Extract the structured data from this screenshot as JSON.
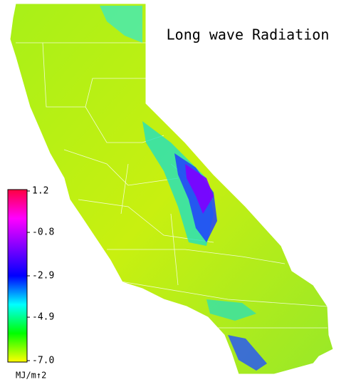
{
  "title": "Long wave Radiation",
  "colorbar": {
    "lim": [
      -7,
      1.2
    ],
    "ticks": [
      1.2,
      -0.8,
      -2.9,
      -4.9,
      {
        "value": -7,
        "label": "-7.0"
      }
    ],
    "colors": [
      "#ffff00",
      "#00ff00",
      "#00ffff",
      "#0000ff",
      "#8000ff",
      "#ff00ff",
      "#ff0040"
    ],
    "unit": "MJ/m↑2"
  }
}
